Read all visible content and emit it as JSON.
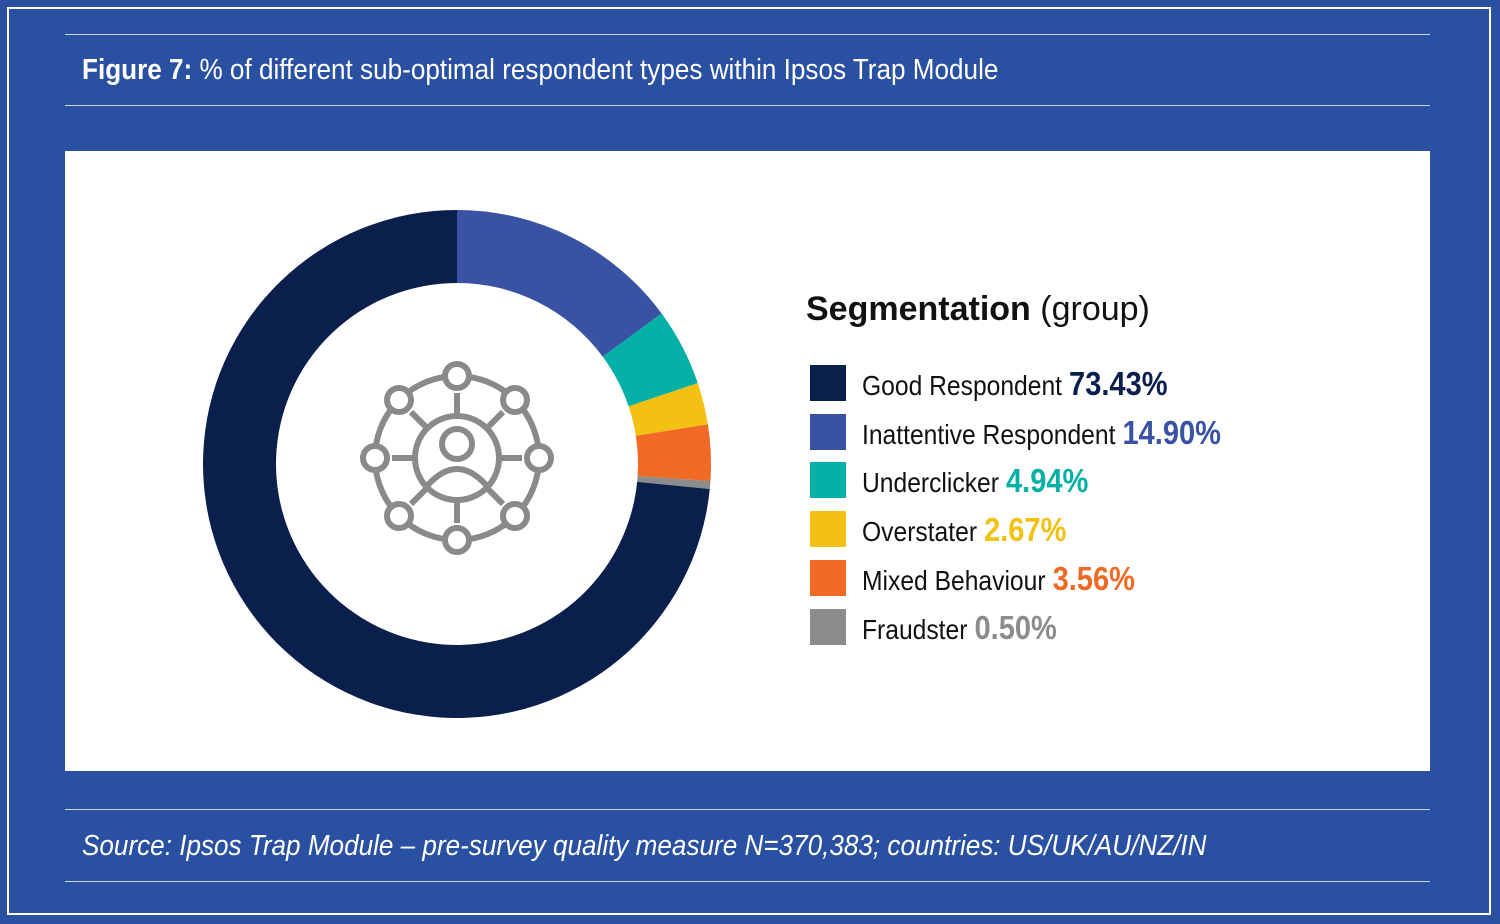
{
  "figure": {
    "label": "Figure 7:",
    "title": "% of different sub-optimal respondent types within Ipsos Trap Module"
  },
  "legend": {
    "title_bold": "Segmentation",
    "title_rest": "(group)"
  },
  "center_icon": "network-people-icon",
  "chart_data": {
    "type": "pie",
    "style": "donut",
    "categories": [
      "Good Respondent",
      "Inattentive Respondent",
      "Underclicker",
      "Overstater",
      "Mixed Behaviour",
      "Fraudster"
    ],
    "values": [
      73.43,
      14.9,
      4.94,
      2.67,
      3.56,
      0.5
    ],
    "value_labels": [
      "73.43%",
      "14.90%",
      "4.94%",
      "2.67%",
      "3.56%",
      "0.50%"
    ],
    "slice_order": [
      "Inattentive Respondent",
      "Underclicker",
      "Overstater",
      "Mixed Behaviour",
      "Fraudster",
      "Good Respondent"
    ],
    "colors": [
      "#0b1f4d",
      "#3a52a3",
      "#05b0a6",
      "#f2c114",
      "#f06a25",
      "#8c8c8c"
    ],
    "legend_placement": "right",
    "start": "top",
    "direction": "clockwise"
  },
  "source": "Source: Ipsos Trap Module – pre-survey quality measure N=370,383; countries: US/UK/AU/NZ/IN"
}
